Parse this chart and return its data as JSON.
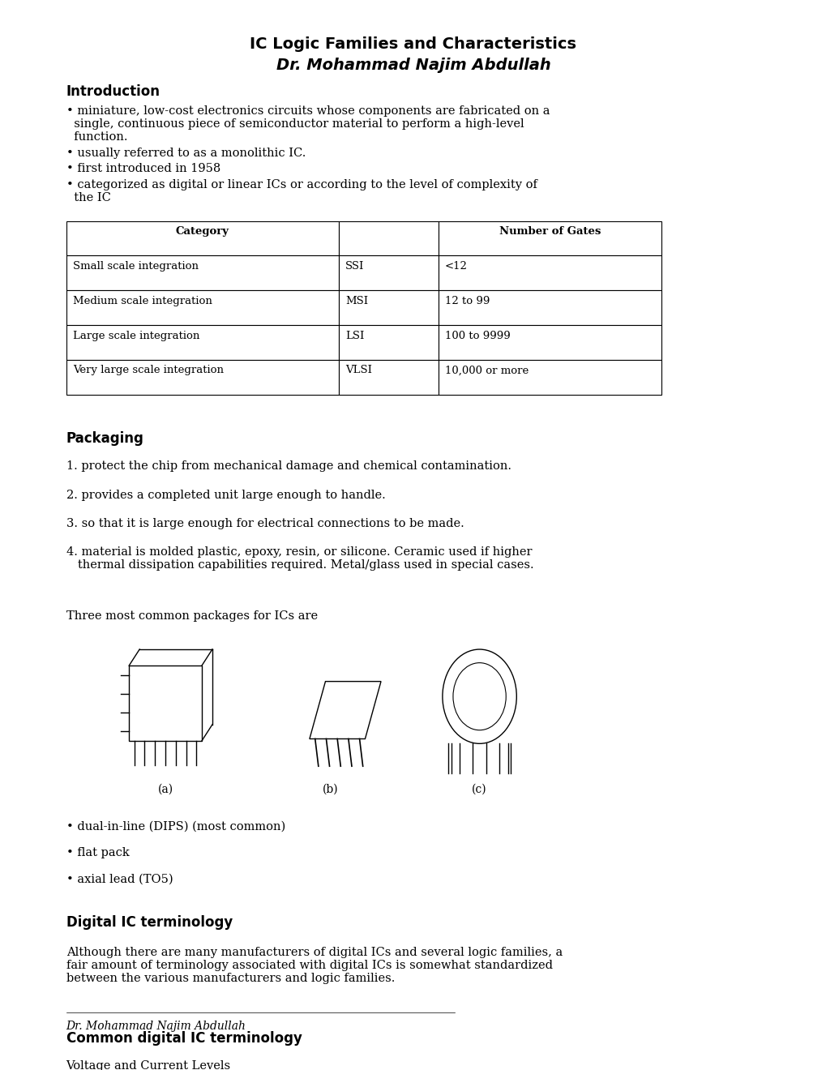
{
  "title_line1": "IC Logic Families and Characteristics",
  "title_line2": "Dr. Mohammad Najim Abdullah",
  "section1_header": "Introduction",
  "bullet1": "• miniature, low-cost electronics circuits whose components are fabricated on a\n  single, continuous piece of semiconductor material to perform a high-level\n  function.",
  "bullet2": "• usually referred to as a monolithic IC.",
  "bullet3": "• first introduced in 1958",
  "bullet4": "• categorized as digital or linear ICs or according to the level of complexity of\n  the IC",
  "table_headers": [
    "Category",
    "",
    "Number of Gates"
  ],
  "table_rows": [
    [
      "Small scale integration",
      "SSI",
      "<12"
    ],
    [
      "Medium scale integration",
      "MSI",
      "12 to 99"
    ],
    [
      "Large scale integration",
      "LSI",
      "100 to 9999"
    ],
    [
      "Very large scale integration",
      "VLSI",
      "10,000 or more"
    ]
  ],
  "section2_header": "Packaging",
  "packaging_items": [
    "1. protect the chip from mechanical damage and chemical contamination.",
    "2. provides a completed unit large enough to handle.",
    "3. so that it is large enough for electrical connections to be made.",
    "4. material is molded plastic, epoxy, resin, or silicone. Ceramic used if higher\n   thermal dissipation capabilities required. Metal/glass used in special cases."
  ],
  "packages_text": "Three most common packages for ICs are",
  "pkg_labels": [
    "(a)",
    "(b)",
    "(c)"
  ],
  "bullet_pkg1": "• dual-in-line (DIPS) (most common)",
  "bullet_pkg2": "• flat pack",
  "bullet_pkg3": "• axial lead (TO5)",
  "section3_header": "Digital IC terminology",
  "digital_text": "Although there are many manufacturers of digital ICs and several logic families, a\nfair amount of terminology associated with digital ICs is somewhat standardized\nbetween the various manufacturers and logic families.",
  "section4_header": "Common digital IC terminology",
  "common_text": "Voltage and Current Levels",
  "footer": "Dr. Mohammad Najim Abdullah",
  "bg_color": "#ffffff",
  "text_color": "#000000"
}
